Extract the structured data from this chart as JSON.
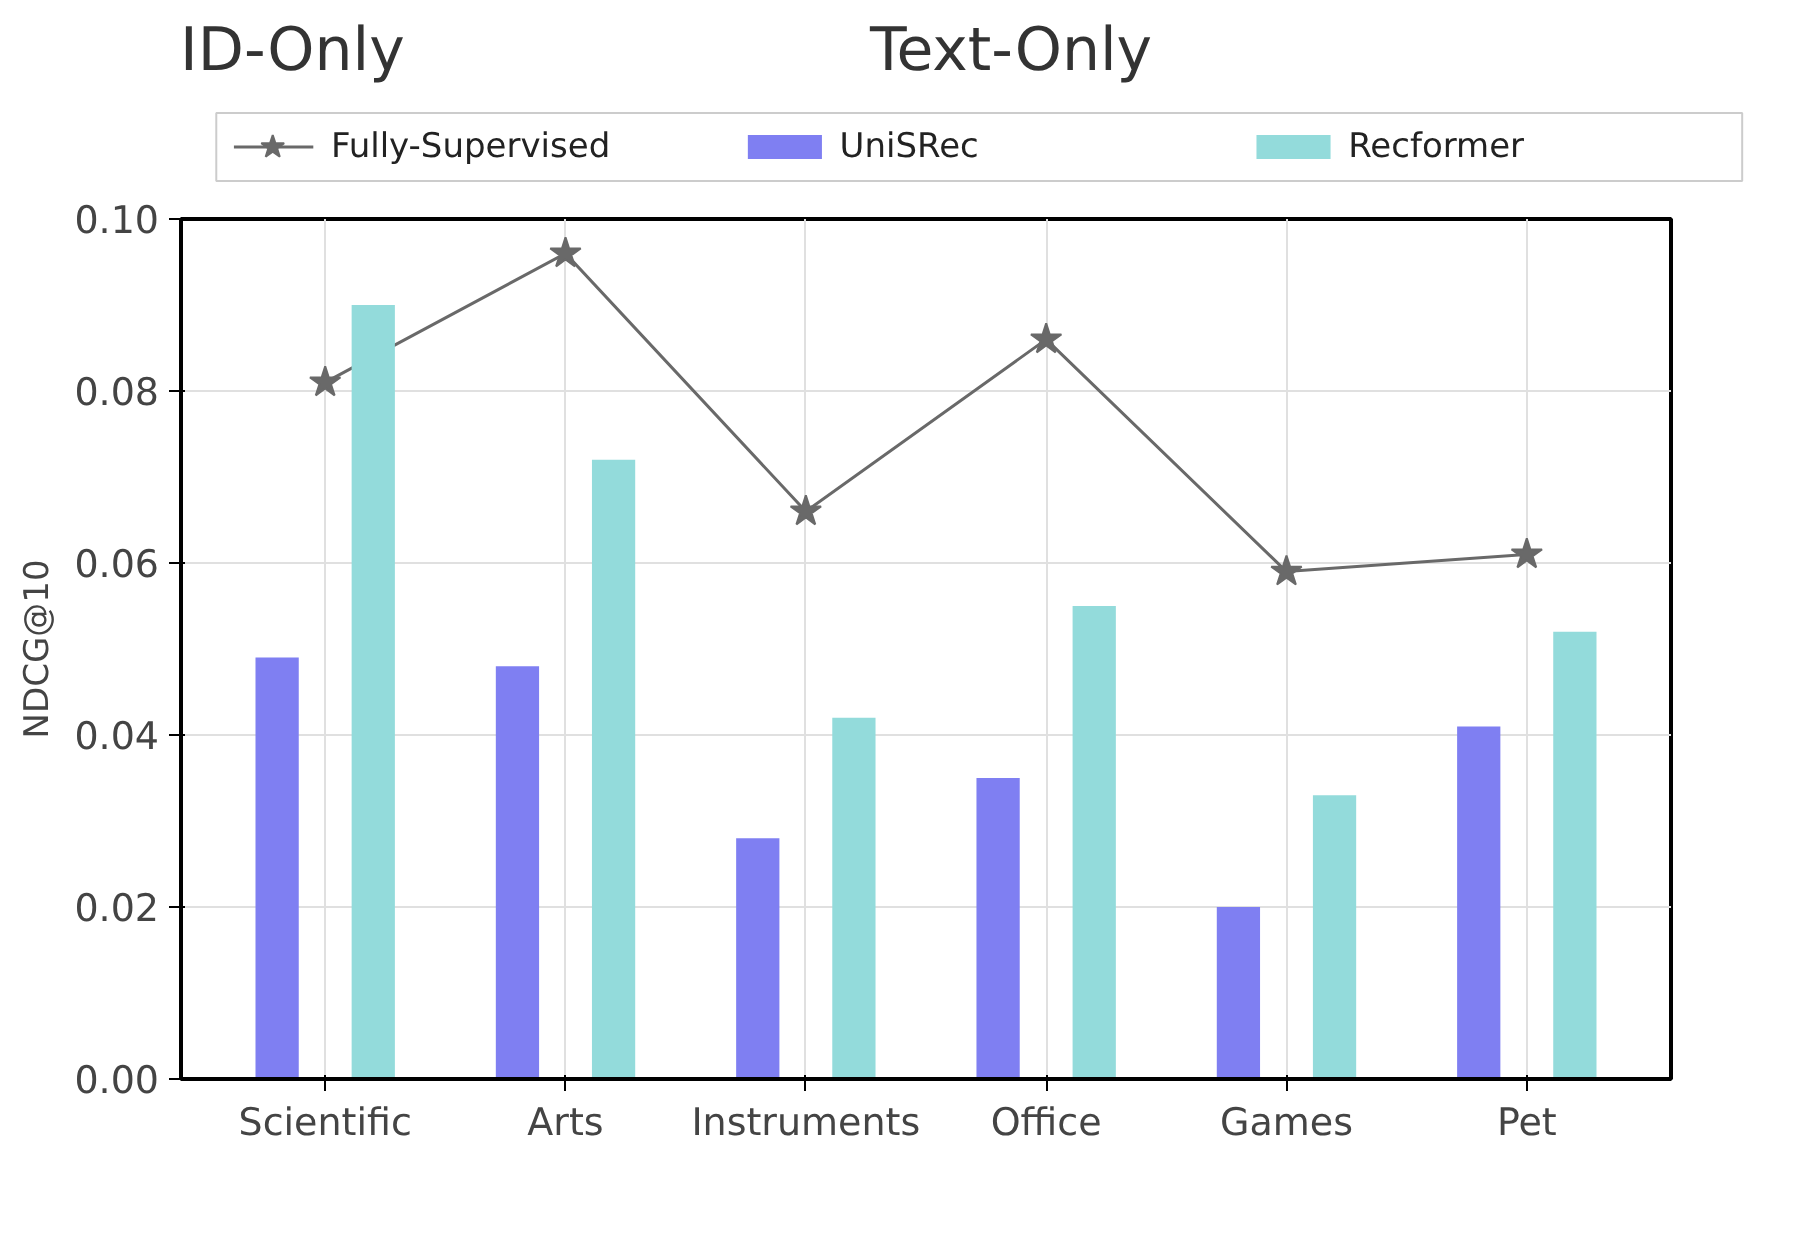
{
  "chart_data": {
    "type": "bar",
    "ylabel": "NDCG@10",
    "annotations": [
      "ID-Only",
      "Text-Only"
    ],
    "categories": [
      "Scientific",
      "Arts",
      "Instruments",
      "Office",
      "Games",
      "Pet"
    ],
    "series": [
      {
        "name": "Fully-Supervised",
        "type": "line",
        "color": "#696969",
        "marker": "star",
        "values": [
          0.081,
          0.096,
          0.066,
          0.086,
          0.059,
          0.061
        ]
      },
      {
        "name": "UniSRec",
        "color": "#7f7ff2",
        "values": [
          0.049,
          0.048,
          0.028,
          0.035,
          0.02,
          0.041
        ]
      },
      {
        "name": "Recformer",
        "color": "#93dbdb",
        "values": [
          0.09,
          0.072,
          0.042,
          0.055,
          0.033,
          0.052
        ]
      }
    ],
    "ylim": [
      0,
      0.1
    ],
    "yticks": [
      {
        "value": 0,
        "label": "0.00"
      },
      {
        "value": 0.02,
        "label": "0.02"
      },
      {
        "value": 0.04,
        "label": "0.04"
      },
      {
        "value": 0.06,
        "label": "0.06"
      },
      {
        "value": 0.08,
        "label": "0.08"
      },
      {
        "value": 0.1,
        "label": "0.10"
      }
    ],
    "grid": true,
    "legend": "top"
  }
}
